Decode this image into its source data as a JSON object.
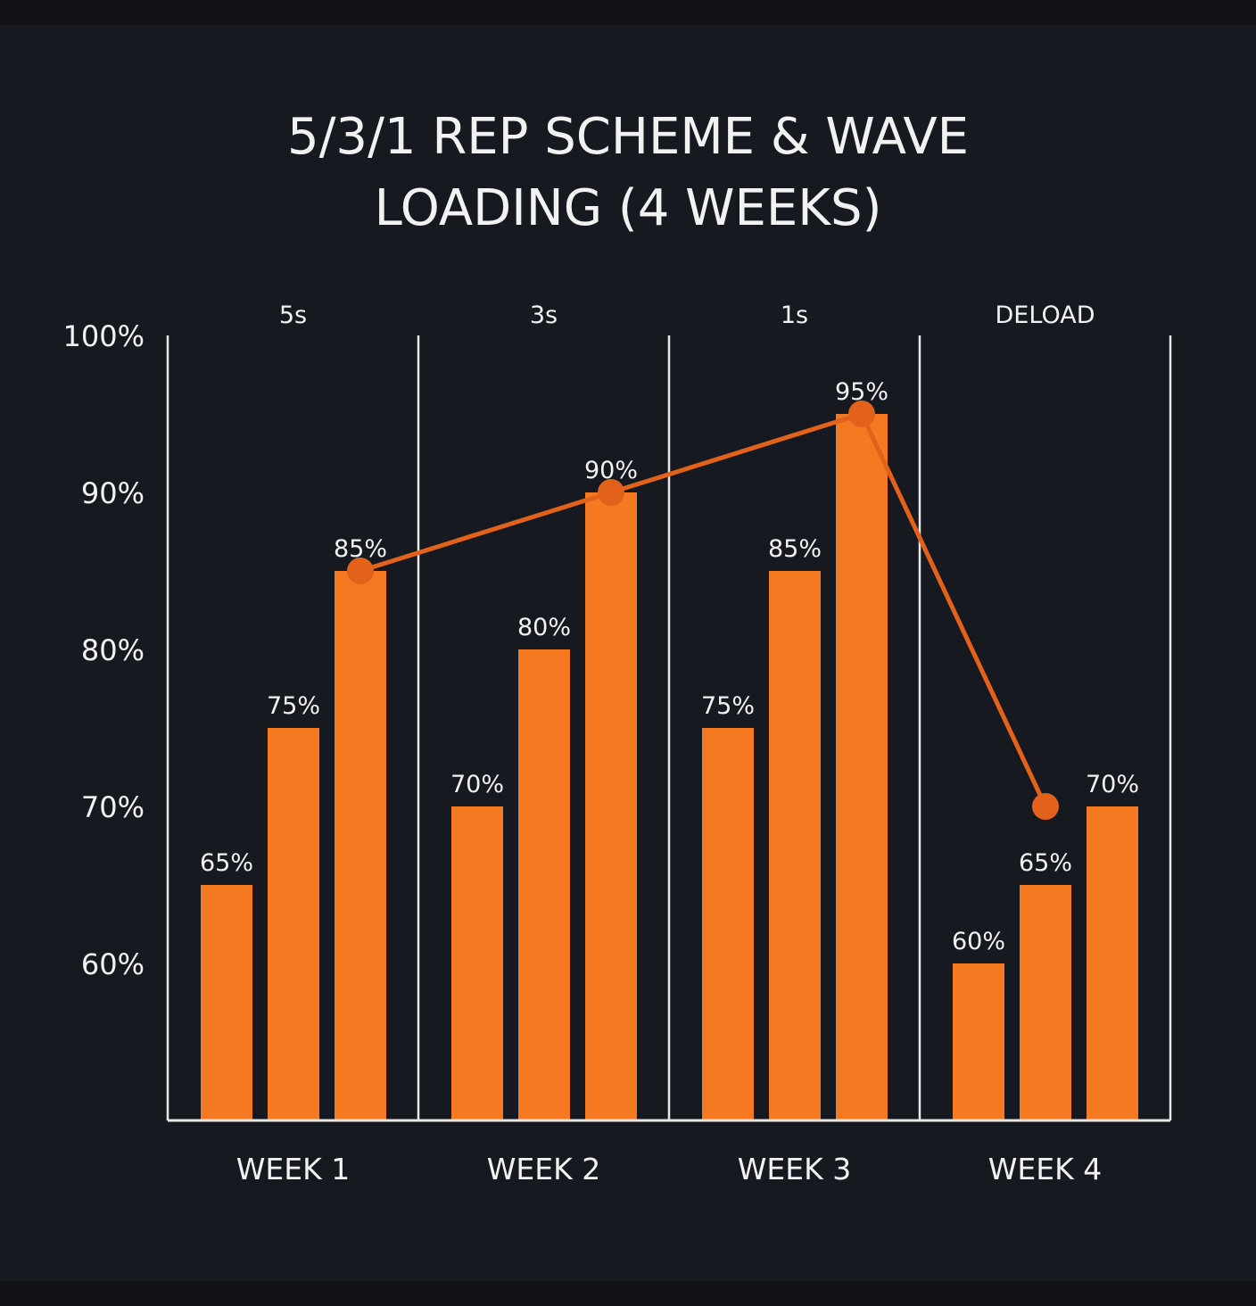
{
  "chart_data": {
    "type": "bar",
    "title_lines": [
      "5/3/1 REP SCHEME & WAVE",
      "LOADING (4 WEEKS)"
    ],
    "categories": [
      "WEEK 1",
      "WEEK 2",
      "WEEK 3",
      "WEEK 4"
    ],
    "group_labels": [
      "5s",
      "3s",
      "1s",
      "DELOAD"
    ],
    "ylim": [
      50,
      100
    ],
    "yticks": [
      60,
      70,
      80,
      90,
      100
    ],
    "ytick_labels": [
      "60%",
      "70%",
      "80%",
      "90%",
      "100%"
    ],
    "sets": [
      [
        65,
        75,
        85
      ],
      [
        70,
        80,
        90
      ],
      [
        75,
        85,
        95
      ],
      [
        60,
        65,
        70
      ]
    ],
    "bar_labels": [
      [
        "65%",
        "75%",
        "85%"
      ],
      [
        "70%",
        "80%",
        "90%"
      ],
      [
        "75%",
        "85%",
        "95%"
      ],
      [
        "60%",
        "65%",
        "70%"
      ]
    ],
    "line_overlay": {
      "values": [
        85,
        90,
        95,
        70
      ],
      "bar_index": [
        2,
        2,
        2,
        1
      ]
    },
    "grid": false,
    "colors": {
      "background": "#161a20",
      "band": "#111216",
      "bar": "#f47920",
      "line": "#e2621c",
      "axis": "#e8e8e8",
      "text": "#f2f2f2"
    }
  }
}
